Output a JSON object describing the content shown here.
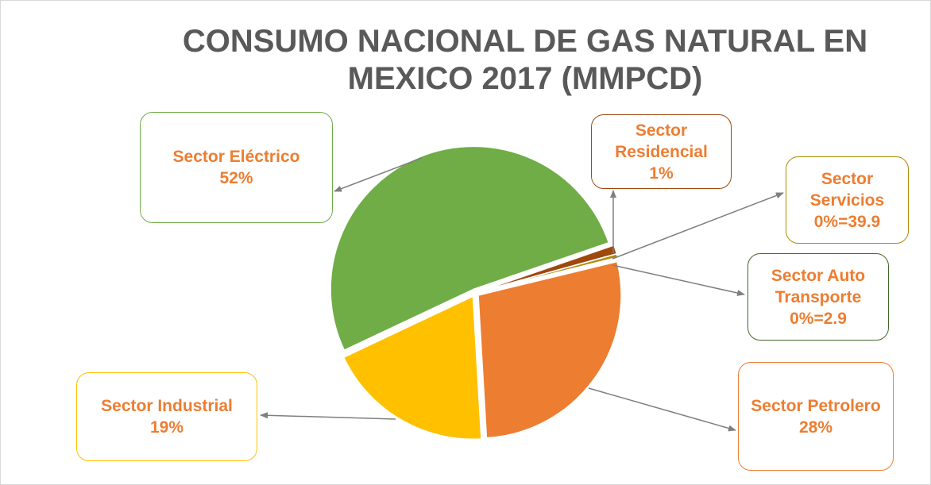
{
  "chart_data": {
    "type": "pie",
    "title": "CONSUMO NACIONAL DE GAS NATURAL EN MEXICO 2017 (MMPCD)",
    "categories": [
      "Sector Residencial",
      "Sector Servicios",
      "Sector Auto Transporte",
      "Sector Petrolero",
      "Sector Industrial",
      "Sector Eléctrico"
    ],
    "values": [
      1,
      0.4,
      0.1,
      28,
      19,
      52
    ],
    "value_labels": [
      "1%",
      "0%=39.9",
      "0%=2.9",
      "28%",
      "19%",
      "52%"
    ],
    "colors": [
      "#9e480e",
      "#b08a00",
      "#43682b",
      "#ed7d31",
      "#ffc000",
      "#70ad47"
    ]
  }
}
